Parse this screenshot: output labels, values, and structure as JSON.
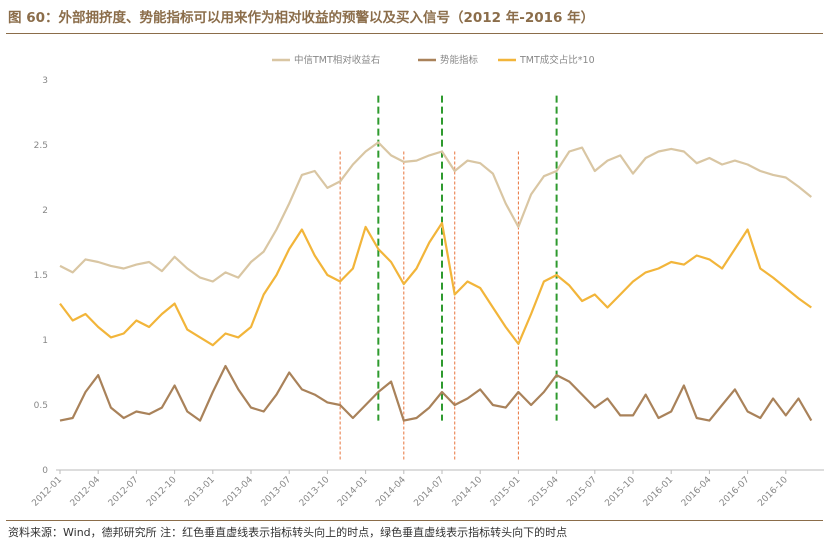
{
  "header": {
    "title": "图 60：外部拥挤度、势能指标可以用来作为相对收益的预警以及买入信号（2012 年-2016 年）"
  },
  "footer": {
    "source": "资料来源：Wind，德邦研究所 注：红色垂直虚线表示指标转头向上的时点，绿色垂直虚线表示指标转头向下的时点"
  },
  "colors": {
    "accent": "#8b6d4a",
    "rel_return": "#d9c6a3",
    "momentum": "#a9825a",
    "turnover": "#f2b53a",
    "red_line": "#e8743c",
    "green_line": "#2e9a2e"
  },
  "chart_data": {
    "type": "line",
    "title": "",
    "ylim": [
      0,
      3
    ],
    "yticks": [
      "0",
      "0.5",
      "1",
      "1.5",
      "2",
      "2.5",
      "3"
    ],
    "x_start": "2012-01",
    "x_end": "2016-12",
    "xticks": [
      "2012-01",
      "2012-04",
      "2012-07",
      "2012-10",
      "2013-01",
      "2013-04",
      "2013-07",
      "2013-10",
      "2014-01",
      "2014-04",
      "2014-07",
      "2014-10",
      "2015-01",
      "2015-04",
      "2015-07",
      "2015-10",
      "2016-01",
      "2016-04",
      "2016-07",
      "2016-10"
    ],
    "legend": [
      "中信TMT相对收益右",
      "势能指标",
      "TMT成交占比*10"
    ],
    "legend_position": "top",
    "series": [
      {
        "name": "中信TMT相对收益右",
        "points": [
          [
            "2012-01",
            1.57
          ],
          [
            "2012-02",
            1.52
          ],
          [
            "2012-03",
            1.62
          ],
          [
            "2012-04",
            1.6
          ],
          [
            "2012-05",
            1.57
          ],
          [
            "2012-06",
            1.55
          ],
          [
            "2012-07",
            1.58
          ],
          [
            "2012-08",
            1.6
          ],
          [
            "2012-09",
            1.53
          ],
          [
            "2012-10",
            1.64
          ],
          [
            "2012-11",
            1.55
          ],
          [
            "2012-12",
            1.48
          ],
          [
            "2013-01",
            1.45
          ],
          [
            "2013-02",
            1.52
          ],
          [
            "2013-03",
            1.48
          ],
          [
            "2013-04",
            1.6
          ],
          [
            "2013-05",
            1.68
          ],
          [
            "2013-06",
            1.85
          ],
          [
            "2013-07",
            2.05
          ],
          [
            "2013-08",
            2.27
          ],
          [
            "2013-09",
            2.3
          ],
          [
            "2013-10",
            2.17
          ],
          [
            "2013-11",
            2.22
          ],
          [
            "2013-12",
            2.35
          ],
          [
            "2014-01",
            2.45
          ],
          [
            "2014-02",
            2.52
          ],
          [
            "2014-03",
            2.42
          ],
          [
            "2014-04",
            2.37
          ],
          [
            "2014-05",
            2.38
          ],
          [
            "2014-06",
            2.42
          ],
          [
            "2014-07",
            2.45
          ],
          [
            "2014-08",
            2.3
          ],
          [
            "2014-09",
            2.38
          ],
          [
            "2014-10",
            2.36
          ],
          [
            "2014-11",
            2.28
          ],
          [
            "2014-12",
            2.05
          ],
          [
            "2015-01",
            1.87
          ],
          [
            "2015-02",
            2.12
          ],
          [
            "2015-03",
            2.26
          ],
          [
            "2015-04",
            2.3
          ],
          [
            "2015-05",
            2.45
          ],
          [
            "2015-06",
            2.48
          ],
          [
            "2015-07",
            2.3
          ],
          [
            "2015-08",
            2.38
          ],
          [
            "2015-09",
            2.42
          ],
          [
            "2015-10",
            2.28
          ],
          [
            "2015-11",
            2.4
          ],
          [
            "2015-12",
            2.45
          ],
          [
            "2016-01",
            2.47
          ],
          [
            "2016-02",
            2.45
          ],
          [
            "2016-03",
            2.36
          ],
          [
            "2016-04",
            2.4
          ],
          [
            "2016-05",
            2.35
          ],
          [
            "2016-06",
            2.38
          ],
          [
            "2016-07",
            2.35
          ],
          [
            "2016-08",
            2.3
          ],
          [
            "2016-09",
            2.27
          ],
          [
            "2016-10",
            2.25
          ],
          [
            "2016-11",
            2.18
          ],
          [
            "2016-12",
            2.1
          ]
        ]
      },
      {
        "name": "势能指标",
        "points": [
          [
            "2012-01",
            0.38
          ],
          [
            "2012-02",
            0.4
          ],
          [
            "2012-03",
            0.6
          ],
          [
            "2012-04",
            0.73
          ],
          [
            "2012-05",
            0.48
          ],
          [
            "2012-06",
            0.4
          ],
          [
            "2012-07",
            0.45
          ],
          [
            "2012-08",
            0.43
          ],
          [
            "2012-09",
            0.48
          ],
          [
            "2012-10",
            0.65
          ],
          [
            "2012-11",
            0.45
          ],
          [
            "2012-12",
            0.38
          ],
          [
            "2013-01",
            0.6
          ],
          [
            "2013-02",
            0.8
          ],
          [
            "2013-03",
            0.62
          ],
          [
            "2013-04",
            0.48
          ],
          [
            "2013-05",
            0.45
          ],
          [
            "2013-06",
            0.58
          ],
          [
            "2013-07",
            0.75
          ],
          [
            "2013-08",
            0.62
          ],
          [
            "2013-09",
            0.58
          ],
          [
            "2013-10",
            0.52
          ],
          [
            "2013-11",
            0.5
          ],
          [
            "2013-12",
            0.4
          ],
          [
            "2014-01",
            0.5
          ],
          [
            "2014-02",
            0.6
          ],
          [
            "2014-03",
            0.68
          ],
          [
            "2014-04",
            0.38
          ],
          [
            "2014-05",
            0.4
          ],
          [
            "2014-06",
            0.48
          ],
          [
            "2014-07",
            0.6
          ],
          [
            "2014-08",
            0.5
          ],
          [
            "2014-09",
            0.55
          ],
          [
            "2014-10",
            0.62
          ],
          [
            "2014-11",
            0.5
          ],
          [
            "2014-12",
            0.48
          ],
          [
            "2015-01",
            0.6
          ],
          [
            "2015-02",
            0.5
          ],
          [
            "2015-03",
            0.6
          ],
          [
            "2015-04",
            0.73
          ],
          [
            "2015-05",
            0.68
          ],
          [
            "2015-06",
            0.58
          ],
          [
            "2015-07",
            0.48
          ],
          [
            "2015-08",
            0.55
          ],
          [
            "2015-09",
            0.42
          ],
          [
            "2015-10",
            0.42
          ],
          [
            "2015-11",
            0.58
          ],
          [
            "2015-12",
            0.4
          ],
          [
            "2016-01",
            0.45
          ],
          [
            "2016-02",
            0.65
          ],
          [
            "2016-03",
            0.4
          ],
          [
            "2016-04",
            0.38
          ],
          [
            "2016-05",
            0.5
          ],
          [
            "2016-06",
            0.62
          ],
          [
            "2016-07",
            0.45
          ],
          [
            "2016-08",
            0.4
          ],
          [
            "2016-09",
            0.55
          ],
          [
            "2016-10",
            0.42
          ],
          [
            "2016-11",
            0.55
          ],
          [
            "2016-12",
            0.38
          ]
        ]
      },
      {
        "name": "TMT成交占比*10",
        "points": [
          [
            "2012-01",
            1.28
          ],
          [
            "2012-02",
            1.15
          ],
          [
            "2012-03",
            1.2
          ],
          [
            "2012-04",
            1.1
          ],
          [
            "2012-05",
            1.02
          ],
          [
            "2012-06",
            1.05
          ],
          [
            "2012-07",
            1.15
          ],
          [
            "2012-08",
            1.1
          ],
          [
            "2012-09",
            1.2
          ],
          [
            "2012-10",
            1.28
          ],
          [
            "2012-11",
            1.08
          ],
          [
            "2012-12",
            1.02
          ],
          [
            "2013-01",
            0.96
          ],
          [
            "2013-02",
            1.05
          ],
          [
            "2013-03",
            1.02
          ],
          [
            "2013-04",
            1.1
          ],
          [
            "2013-05",
            1.35
          ],
          [
            "2013-06",
            1.5
          ],
          [
            "2013-07",
            1.7
          ],
          [
            "2013-08",
            1.85
          ],
          [
            "2013-09",
            1.65
          ],
          [
            "2013-10",
            1.5
          ],
          [
            "2013-11",
            1.45
          ],
          [
            "2013-12",
            1.55
          ],
          [
            "2014-01",
            1.87
          ],
          [
            "2014-02",
            1.7
          ],
          [
            "2014-03",
            1.6
          ],
          [
            "2014-04",
            1.43
          ],
          [
            "2014-05",
            1.55
          ],
          [
            "2014-06",
            1.75
          ],
          [
            "2014-07",
            1.9
          ],
          [
            "2014-08",
            1.35
          ],
          [
            "2014-09",
            1.45
          ],
          [
            "2014-10",
            1.4
          ],
          [
            "2014-11",
            1.25
          ],
          [
            "2014-12",
            1.1
          ],
          [
            "2015-01",
            0.97
          ],
          [
            "2015-02",
            1.2
          ],
          [
            "2015-03",
            1.45
          ],
          [
            "2015-04",
            1.5
          ],
          [
            "2015-05",
            1.42
          ],
          [
            "2015-06",
            1.3
          ],
          [
            "2015-07",
            1.35
          ],
          [
            "2015-08",
            1.25
          ],
          [
            "2015-09",
            1.35
          ],
          [
            "2015-10",
            1.45
          ],
          [
            "2015-11",
            1.52
          ],
          [
            "2015-12",
            1.55
          ],
          [
            "2016-01",
            1.6
          ],
          [
            "2016-02",
            1.58
          ],
          [
            "2016-03",
            1.65
          ],
          [
            "2016-04",
            1.62
          ],
          [
            "2016-05",
            1.55
          ],
          [
            "2016-06",
            1.7
          ],
          [
            "2016-07",
            1.85
          ],
          [
            "2016-08",
            1.55
          ],
          [
            "2016-09",
            1.48
          ],
          [
            "2016-10",
            1.4
          ],
          [
            "2016-11",
            1.32
          ],
          [
            "2016-12",
            1.25
          ]
        ]
      }
    ],
    "red_dashed_lines": [
      "2013-11",
      "2014-04",
      "2014-08",
      "2015-01"
    ],
    "green_dashed_lines": [
      "2014-02",
      "2014-07",
      "2015-04"
    ]
  }
}
